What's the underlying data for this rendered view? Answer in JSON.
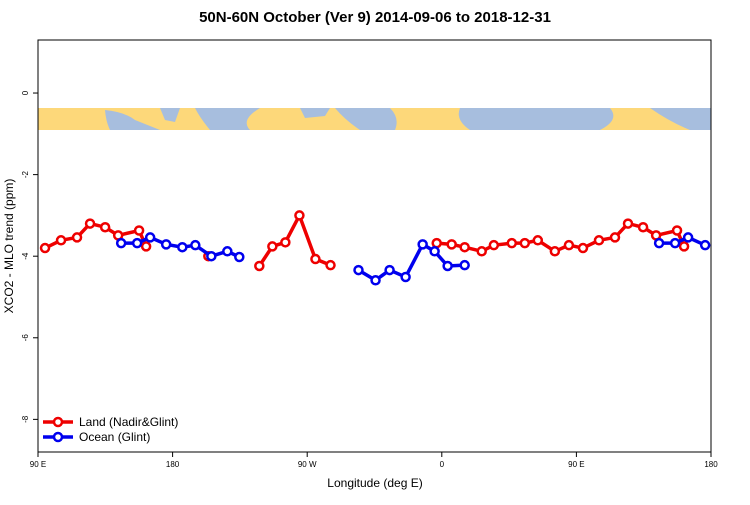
{
  "chart_data": {
    "type": "line",
    "title": "50N-60N October (Ver 9)   2014-09-06 to 2018-12-31",
    "x_label": "Longitude (deg E)",
    "y_label": "XCO2 - MLO trend (ppm)",
    "xlim": [
      90,
      540
    ],
    "ylim": [
      -8.8,
      1.3
    ],
    "xticks": [
      {
        "value": 90,
        "label": "90 E"
      },
      {
        "value": 180,
        "label": "180"
      },
      {
        "value": 270,
        "label": "90 W"
      },
      {
        "value": 360,
        "label": "0"
      },
      {
        "value": 450,
        "label": "90 E"
      },
      {
        "value": 540,
        "label": "180"
      }
    ],
    "yticks": [
      0,
      -2,
      -4,
      -6,
      -8
    ],
    "legend": "bottom-left",
    "series": [
      {
        "name": "Land (Nadir&Glint)",
        "color": "#ee0000",
        "x": [
          94.7,
          105.4,
          116.1,
          124.8,
          134.9,
          143.6,
          157.6,
          162.3,
          null,
          203.9,
          null,
          238.0,
          246.7,
          255.4,
          264.8,
          275.5,
          285.6,
          null,
          356.6,
          366.6,
          375.3,
          386.7,
          394.8,
          406.8,
          415.5,
          424.2,
          435.6,
          445.0,
          454.4,
          465.1,
          475.8,
          484.5,
          494.6,
          503.3,
          517.3,
          522.0
        ],
        "values": [
          -3.8,
          -3.61,
          -3.54,
          -3.2,
          -3.29,
          -3.49,
          -3.37,
          -3.76,
          null,
          -4.0,
          null,
          -4.24,
          -3.76,
          -3.66,
          -3.0,
          -4.07,
          -4.22,
          null,
          -3.68,
          -3.71,
          -3.78,
          -3.88,
          -3.73,
          -3.68,
          -3.68,
          -3.61,
          -3.88,
          -3.73,
          -3.8,
          -3.61,
          -3.54,
          -3.2,
          -3.29,
          -3.49,
          -3.37,
          -3.76
        ]
      },
      {
        "name": "Ocean (Glint)",
        "color": "#0000ee",
        "x": [
          145.6,
          156.3,
          165.0,
          175.7,
          186.5,
          195.2,
          205.9,
          216.6,
          224.6,
          null,
          304.3,
          315.7,
          325.1,
          335.8,
          347.2,
          355.2,
          363.9,
          375.3,
          null,
          505.3,
          516.0,
          524.7,
          536.1
        ],
        "values": [
          -3.68,
          -3.68,
          -3.54,
          -3.71,
          -3.78,
          -3.73,
          -4.0,
          -3.88,
          -4.02,
          null,
          -4.34,
          -4.59,
          -4.34,
          -4.51,
          -3.71,
          -3.88,
          -4.24,
          -4.22,
          null,
          -3.68,
          -3.68,
          -3.54,
          -3.73
        ]
      }
    ]
  }
}
